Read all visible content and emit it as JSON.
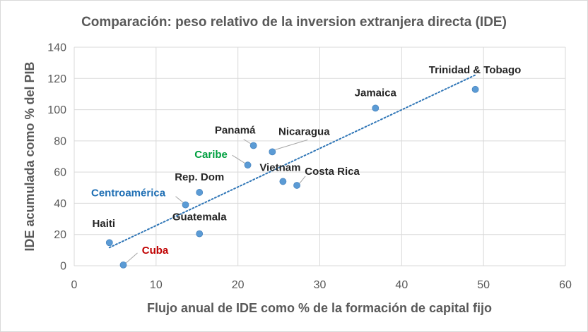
{
  "chart_data": {
    "type": "scatter",
    "title": "Comparación: peso relativo de la inversion extranjera directa (IDE)",
    "xlabel": "Flujo anual de IDE como % de la formación de capital fijo",
    "ylabel": "IDE acumulada como % del PIB",
    "xlim": [
      0,
      60
    ],
    "ylim": [
      0,
      140
    ],
    "x_ticks": [
      0,
      10,
      20,
      30,
      40,
      50,
      60
    ],
    "y_ticks": [
      0,
      20,
      40,
      60,
      80,
      100,
      120,
      140
    ],
    "grid": true,
    "trendline": {
      "type": "linear",
      "style": "dotted",
      "x_range": [
        4.3,
        49.0
      ]
    },
    "points": [
      {
        "label": "Haiti",
        "x": 4.3,
        "y": 14.8,
        "label_color": "#262626"
      },
      {
        "label": "Cuba",
        "x": 6.0,
        "y": 0.5,
        "label_color": "#c00000"
      },
      {
        "label": "Centroamérica",
        "x": 13.6,
        "y": 39.0,
        "label_color": "#1f6fb4"
      },
      {
        "label": "Rep. Dom",
        "x": 15.3,
        "y": 47.0,
        "label_color": "#262626"
      },
      {
        "label": "Guatemala",
        "x": 15.3,
        "y": 20.5,
        "label_color": "#262626"
      },
      {
        "label": "Caribe",
        "x": 21.2,
        "y": 64.5,
        "label_color": "#00a040"
      },
      {
        "label": "Panamá",
        "x": 21.9,
        "y": 77.0,
        "label_color": "#262626"
      },
      {
        "label": "Nicaragua",
        "x": 24.2,
        "y": 73.0,
        "label_color": "#262626"
      },
      {
        "label": "Vietnam",
        "x": 25.5,
        "y": 54.0,
        "label_color": "#262626"
      },
      {
        "label": "Costa Rica",
        "x": 27.2,
        "y": 51.5,
        "label_color": "#262626"
      },
      {
        "label": "Jamaica",
        "x": 36.8,
        "y": 101.0,
        "label_color": "#262626"
      },
      {
        "label": "Trinidad & Tobago",
        "x": 49.0,
        "y": 113.0,
        "label_color": "#262626"
      }
    ],
    "marker_color": "#5b9bd5",
    "trend_color": "#2e75b6"
  }
}
